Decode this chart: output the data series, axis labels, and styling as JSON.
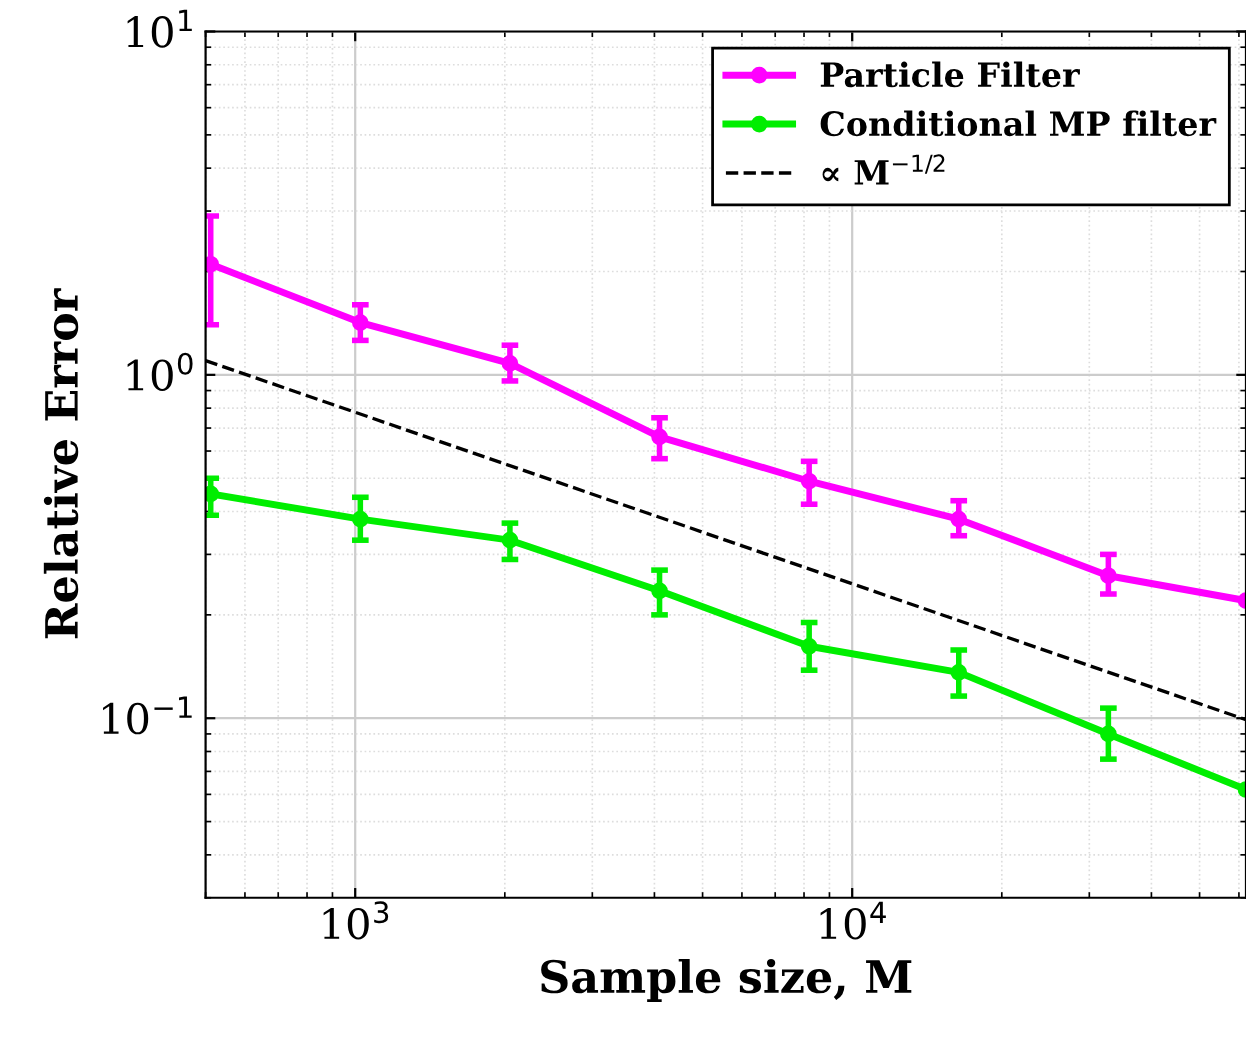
{
  "chart_data": {
    "type": "line",
    "xlabel": "Sample size, M",
    "ylabel": "Relative Error",
    "log": "xy",
    "grid": true,
    "legend": "top right",
    "marker": "circle",
    "xlim": [
      500,
      62000
    ],
    "ylim": [
      0.03,
      10
    ],
    "xticks": [
      {
        "value": 1000,
        "label": "10$^{3}$"
      },
      {
        "value": 10000,
        "label": "10$^{4}$"
      }
    ],
    "yticks": [
      {
        "value": 0.1,
        "label": "10$^{−1}$"
      },
      {
        "value": 1,
        "label": "10$^{0}$"
      },
      {
        "value": 10,
        "label": "10$^{1}$"
      }
    ],
    "series": [
      {
        "name": "Particle Filter",
        "color": "#ff00ff",
        "x": [
          512,
          1024,
          2048,
          4096,
          8192,
          16384,
          32768,
          62000
        ],
        "values": [
          2.1,
          1.42,
          1.08,
          0.66,
          0.49,
          0.38,
          0.26,
          0.22
        ],
        "errors": [
          [
            1.4,
            2.9
          ],
          [
            1.26,
            1.6
          ],
          [
            0.96,
            1.22
          ],
          [
            0.57,
            0.75
          ],
          [
            0.42,
            0.56
          ],
          [
            0.34,
            0.43
          ],
          [
            0.23,
            0.3
          ],
          null
        ]
      },
      {
        "name": "Conditional MP filter",
        "color": "#00ee00",
        "x": [
          512,
          1024,
          2048,
          4096,
          8192,
          16384,
          32768,
          62000
        ],
        "values": [
          0.45,
          0.38,
          0.33,
          0.235,
          0.162,
          0.136,
          0.09,
          0.062
        ],
        "errors": [
          [
            0.39,
            0.5
          ],
          [
            0.33,
            0.44
          ],
          [
            0.29,
            0.37
          ],
          [
            0.2,
            0.27
          ],
          [
            0.138,
            0.19
          ],
          [
            0.116,
            0.158
          ],
          [
            0.076,
            0.107
          ],
          null
        ]
      },
      {
        "name": "∝ M$^{−1/2}$",
        "color": "#000000",
        "line_style": "dashed",
        "marker": "none",
        "x": [
          500,
          62000
        ],
        "values": [
          1.1,
          0.099
        ]
      }
    ]
  }
}
